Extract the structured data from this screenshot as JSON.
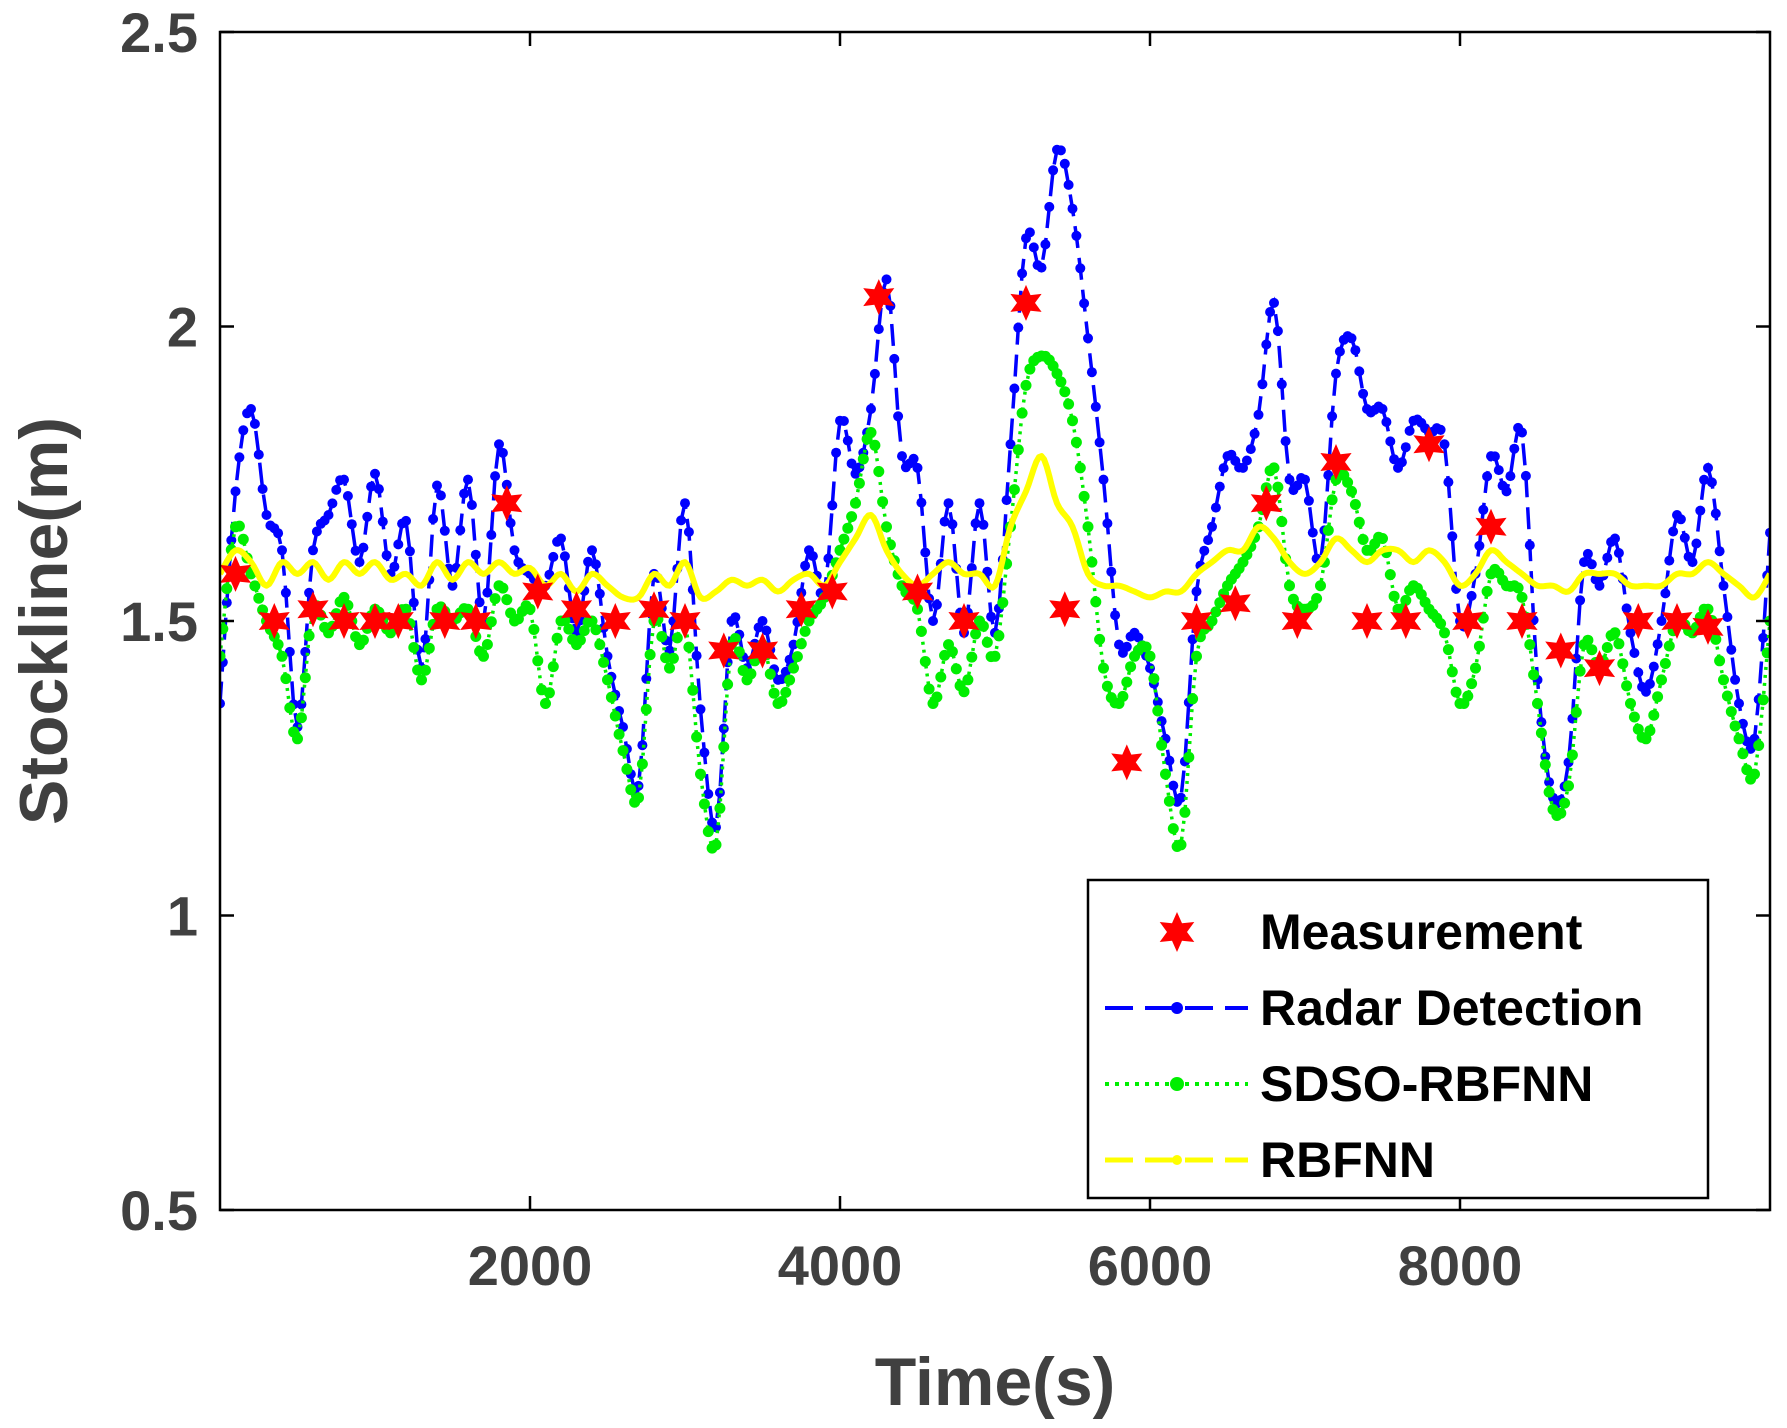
{
  "colors": {
    "measurement": "#ff0000",
    "radar": "#0000ff",
    "sdso": "#00ee00",
    "rbfnn": "#ffff00",
    "axis": "#000000",
    "tick_text": "#404040"
  },
  "chart_data": {
    "type": "line",
    "title": "",
    "xlabel": "Time(s)",
    "ylabel": "Stockline(m)",
    "xlim": [
      0,
      10000
    ],
    "ylim": [
      0.5,
      2.5
    ],
    "xticks": [
      2000,
      4000,
      6000,
      8000
    ],
    "xtick_labels": [
      "2000",
      "4000",
      "6000",
      "8000"
    ],
    "yticks": [
      0.5,
      1,
      1.5,
      2,
      2.5
    ],
    "ytick_labels": [
      "0.5",
      "1",
      "1.5",
      "2",
      "2.5"
    ],
    "grid": false,
    "legend_position": "bottom-right",
    "legend": [
      "Measurement",
      "Radar Detection",
      "SDSO-RBFNN",
      "RBFNN"
    ],
    "series": [
      {
        "name": "Measurement",
        "style": "star-markers",
        "x": [
          100,
          350,
          600,
          800,
          1000,
          1150,
          1450,
          1650,
          1850,
          2050,
          2300,
          2550,
          2800,
          3000,
          3250,
          3500,
          3750,
          3950,
          4250,
          4500,
          4800,
          5200,
          5450,
          5850,
          6300,
          6550,
          6750,
          6950,
          7200,
          7400,
          7650,
          7800,
          8050,
          8200,
          8400,
          8650,
          8900,
          9150,
          9400,
          9600
        ],
        "y": [
          1.58,
          1.5,
          1.52,
          1.5,
          1.5,
          1.5,
          1.5,
          1.5,
          1.7,
          1.55,
          1.52,
          1.5,
          1.52,
          1.5,
          1.45,
          1.45,
          1.52,
          1.55,
          2.05,
          1.55,
          1.5,
          2.04,
          1.52,
          1.26,
          1.5,
          1.53,
          1.7,
          1.5,
          1.77,
          1.5,
          1.5,
          1.8,
          1.5,
          1.66,
          1.5,
          1.45,
          1.42,
          1.5,
          1.5,
          1.49
        ]
      },
      {
        "name": "Radar Detection",
        "style": "dashed-dotted",
        "x": [
          0,
          100,
          200,
          300,
          400,
          500,
          600,
          700,
          800,
          900,
          1000,
          1100,
          1200,
          1300,
          1400,
          1500,
          1600,
          1700,
          1800,
          1900,
          2000,
          2100,
          2200,
          2300,
          2400,
          2500,
          2600,
          2700,
          2800,
          2900,
          3000,
          3100,
          3200,
          3300,
          3400,
          3500,
          3600,
          3700,
          3800,
          3900,
          4000,
          4100,
          4200,
          4300,
          4400,
          4500,
          4600,
          4700,
          4800,
          4900,
          5000,
          5100,
          5200,
          5300,
          5400,
          5500,
          5600,
          5700,
          5800,
          5900,
          6000,
          6100,
          6200,
          6300,
          6400,
          6500,
          6600,
          6700,
          6800,
          6900,
          7000,
          7100,
          7200,
          7300,
          7400,
          7500,
          7600,
          7700,
          7800,
          7900,
          8000,
          8100,
          8200,
          8300,
          8400,
          8500,
          8600,
          8700,
          8800,
          8900,
          9000,
          9100,
          9200,
          9300,
          9400,
          9500,
          9600,
          9700,
          9800,
          9900,
          10000
        ],
        "y": [
          1.36,
          1.72,
          1.86,
          1.68,
          1.62,
          1.32,
          1.62,
          1.68,
          1.74,
          1.6,
          1.75,
          1.58,
          1.67,
          1.42,
          1.73,
          1.56,
          1.74,
          1.5,
          1.8,
          1.62,
          1.58,
          1.56,
          1.64,
          1.48,
          1.62,
          1.44,
          1.32,
          1.22,
          1.58,
          1.45,
          1.7,
          1.35,
          1.15,
          1.5,
          1.42,
          1.5,
          1.4,
          1.46,
          1.62,
          1.55,
          1.84,
          1.75,
          1.86,
          2.08,
          1.78,
          1.76,
          1.5,
          1.7,
          1.48,
          1.7,
          1.48,
          1.8,
          2.15,
          2.1,
          2.3,
          2.2,
          1.98,
          1.74,
          1.46,
          1.48,
          1.42,
          1.3,
          1.2,
          1.55,
          1.66,
          1.78,
          1.76,
          1.85,
          2.04,
          1.74,
          1.74,
          1.6,
          1.92,
          1.98,
          1.86,
          1.86,
          1.76,
          1.84,
          1.82,
          1.8,
          1.5,
          1.58,
          1.78,
          1.72,
          1.82,
          1.4,
          1.2,
          1.26,
          1.6,
          1.56,
          1.64,
          1.48,
          1.38,
          1.5,
          1.68,
          1.6,
          1.76,
          1.56,
          1.36,
          1.3,
          1.65
        ]
      },
      {
        "name": "SDSO-RBFNN",
        "style": "dotted",
        "x": [
          0,
          100,
          200,
          300,
          400,
          500,
          600,
          700,
          800,
          900,
          1000,
          1100,
          1200,
          1300,
          1400,
          1500,
          1600,
          1700,
          1800,
          1900,
          2000,
          2100,
          2200,
          2300,
          2400,
          2500,
          2600,
          2700,
          2800,
          2900,
          3000,
          3100,
          3200,
          3300,
          3400,
          3500,
          3600,
          3700,
          3800,
          3900,
          4000,
          4100,
          4200,
          4300,
          4400,
          4500,
          4600,
          4700,
          4800,
          4900,
          5000,
          5100,
          5200,
          5300,
          5400,
          5500,
          5600,
          5700,
          5800,
          5900,
          6000,
          6100,
          6200,
          6300,
          6400,
          6500,
          6600,
          6700,
          6800,
          6900,
          7000,
          7100,
          7200,
          7300,
          7400,
          7500,
          7600,
          7700,
          7800,
          7900,
          8000,
          8100,
          8200,
          8300,
          8400,
          8500,
          8600,
          8700,
          8800,
          8900,
          9000,
          9100,
          9200,
          9300,
          9400,
          9500,
          9600,
          9700,
          9800,
          9900,
          10000
        ],
        "y": [
          1.44,
          1.66,
          1.58,
          1.5,
          1.44,
          1.3,
          1.52,
          1.48,
          1.54,
          1.46,
          1.52,
          1.48,
          1.52,
          1.4,
          1.52,
          1.5,
          1.52,
          1.44,
          1.56,
          1.5,
          1.52,
          1.36,
          1.5,
          1.46,
          1.5,
          1.4,
          1.28,
          1.2,
          1.5,
          1.42,
          1.5,
          1.24,
          1.12,
          1.46,
          1.4,
          1.46,
          1.36,
          1.42,
          1.5,
          1.54,
          1.62,
          1.7,
          1.82,
          1.66,
          1.56,
          1.52,
          1.36,
          1.46,
          1.38,
          1.5,
          1.44,
          1.66,
          1.9,
          1.95,
          1.92,
          1.84,
          1.66,
          1.42,
          1.36,
          1.44,
          1.44,
          1.24,
          1.12,
          1.44,
          1.5,
          1.56,
          1.6,
          1.66,
          1.76,
          1.56,
          1.52,
          1.56,
          1.74,
          1.72,
          1.62,
          1.64,
          1.52,
          1.56,
          1.52,
          1.48,
          1.36,
          1.42,
          1.58,
          1.56,
          1.54,
          1.36,
          1.18,
          1.22,
          1.46,
          1.42,
          1.48,
          1.36,
          1.3,
          1.4,
          1.5,
          1.48,
          1.52,
          1.4,
          1.3,
          1.24,
          1.5
        ]
      },
      {
        "name": "RBFNN",
        "style": "dashed-solid",
        "x": [
          0,
          100,
          200,
          300,
          400,
          500,
          600,
          700,
          800,
          900,
          1000,
          1100,
          1200,
          1300,
          1400,
          1500,
          1600,
          1700,
          1800,
          1900,
          2000,
          2100,
          2200,
          2300,
          2400,
          2500,
          2600,
          2700,
          2800,
          2900,
          3000,
          3100,
          3200,
          3300,
          3400,
          3500,
          3600,
          3700,
          3800,
          3900,
          4000,
          4100,
          4200,
          4300,
          4400,
          4500,
          4600,
          4700,
          4800,
          4900,
          5000,
          5100,
          5200,
          5300,
          5400,
          5500,
          5600,
          5700,
          5800,
          5900,
          6000,
          6100,
          6200,
          6300,
          6400,
          6500,
          6600,
          6700,
          6800,
          6900,
          7000,
          7100,
          7200,
          7300,
          7400,
          7500,
          7600,
          7700,
          7800,
          7900,
          8000,
          8100,
          8200,
          8300,
          8400,
          8500,
          8600,
          8700,
          8800,
          8900,
          9000,
          9100,
          9200,
          9300,
          9400,
          9500,
          9600,
          9700,
          9800,
          9900,
          10000
        ],
        "y": [
          1.58,
          1.62,
          1.6,
          1.56,
          1.6,
          1.58,
          1.6,
          1.57,
          1.6,
          1.58,
          1.6,
          1.57,
          1.58,
          1.56,
          1.6,
          1.57,
          1.6,
          1.58,
          1.6,
          1.58,
          1.59,
          1.56,
          1.58,
          1.55,
          1.58,
          1.56,
          1.54,
          1.54,
          1.58,
          1.56,
          1.6,
          1.54,
          1.55,
          1.57,
          1.56,
          1.57,
          1.55,
          1.57,
          1.58,
          1.56,
          1.6,
          1.64,
          1.68,
          1.62,
          1.58,
          1.56,
          1.58,
          1.6,
          1.58,
          1.58,
          1.56,
          1.66,
          1.72,
          1.78,
          1.7,
          1.66,
          1.58,
          1.56,
          1.56,
          1.55,
          1.54,
          1.55,
          1.55,
          1.58,
          1.6,
          1.62,
          1.62,
          1.66,
          1.64,
          1.6,
          1.58,
          1.6,
          1.64,
          1.62,
          1.6,
          1.62,
          1.62,
          1.6,
          1.62,
          1.6,
          1.56,
          1.58,
          1.62,
          1.6,
          1.58,
          1.56,
          1.56,
          1.55,
          1.58,
          1.58,
          1.58,
          1.56,
          1.56,
          1.56,
          1.58,
          1.58,
          1.6,
          1.58,
          1.56,
          1.54,
          1.58
        ]
      }
    ]
  }
}
